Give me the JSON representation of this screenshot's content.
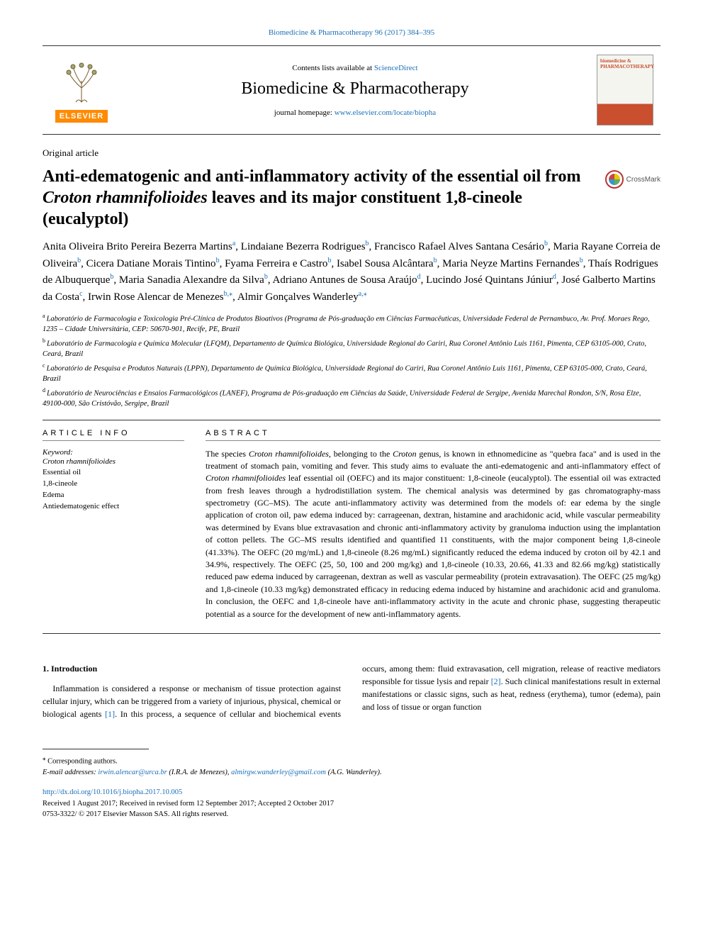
{
  "header": {
    "citation": "Biomedicine & Pharmacotherapy 96 (2017) 384–395",
    "contents_prefix": "Contents lists available at ",
    "contents_link": "ScienceDirect",
    "journal_name": "Biomedicine & Pharmacotherapy",
    "homepage_prefix": "journal homepage: ",
    "homepage_link": "www.elsevier.com/locate/biopha",
    "publisher_word": "ELSEVIER",
    "cover_text": "biomedicine\n& PHARMACOTHERAPY"
  },
  "article": {
    "type": "Original article",
    "title_pre": "Anti-edematogenic and anti-inflammatory activity of the essential oil from ",
    "title_ital": "Croton rhamnifolioides",
    "title_post": " leaves and its major constituent 1,8-cineole (eucalyptol)",
    "crossmark": "CrossMark"
  },
  "authors": {
    "list": [
      {
        "name": "Anita Oliveira Brito Pereira Bezerra Martins",
        "sup": "a"
      },
      {
        "name": "Lindaiane Bezerra Rodrigues",
        "sup": "b"
      },
      {
        "name": "Francisco Rafael Alves Santana Cesário",
        "sup": "b"
      },
      {
        "name": "Maria Rayane Correia de Oliveira",
        "sup": "b"
      },
      {
        "name": "Cicera Datiane Morais Tintino",
        "sup": "b"
      },
      {
        "name": "Fyama Ferreira e Castro",
        "sup": "b"
      },
      {
        "name": "Isabel Sousa Alcântara",
        "sup": "b"
      },
      {
        "name": "Maria Neyze Martins Fernandes",
        "sup": "b"
      },
      {
        "name": "Thaís Rodrigues de Albuquerque",
        "sup": "b"
      },
      {
        "name": "Maria Sanadia Alexandre da Silva",
        "sup": "b"
      },
      {
        "name": "Adriano Antunes de Sousa Araújo",
        "sup": "d"
      },
      {
        "name": "Lucindo José Quintans Júniur",
        "sup": "d"
      },
      {
        "name": "José Galberto Martins da Costa",
        "sup": "c"
      },
      {
        "name": "Irwin Rose Alencar de Menezes",
        "sup": "b,⁎"
      },
      {
        "name": "Almir Gonçalves Wanderley",
        "sup": "a,⁎"
      }
    ]
  },
  "affiliations": {
    "a": "Laboratório de Farmacologia e Toxicologia Pré-Clínica de Produtos Bioativos (Programa de Pós-graduação em Ciências Farmacêuticas, Universidade Federal de Pernambuco, Av. Prof. Moraes Rego, 1235 – Cidade Universitária, CEP: 50670-901, Recife, PE, Brazil",
    "b": "Laboratório de Farmacologia e Química Molecular (LFQM), Departamento de Química Biológica, Universidade Regional do Cariri, Rua Coronel Antônio Luis 1161, Pimenta, CEP 63105-000, Crato, Ceará, Brazil",
    "c": "Laboratório de Pesquisa e Produtos Naturais (LPPN), Departamento de Química Biológica, Universidade Regional do Cariri, Rua Coronel Antônio Luis 1161, Pimenta, CEP 63105-000, Crato, Ceará, Brazil",
    "d": "Laboratório de Neurociências e Ensaios Farmacológicos (LANEF), Programa de Pós-graduação em Ciências da Saúde, Universidade Federal de Sergipe, Avenida Marechal Rondon, S/N, Rosa Elze, 49100-000, São Cristóvão, Sergipe, Brazil"
  },
  "info": {
    "heading": "ARTICLE INFO",
    "kw_label": "Keyword:",
    "keywords": [
      "Croton rhamnifolioides",
      "Essential oil",
      "1,8-cineole",
      "Edema",
      "Antiedematogenic effect"
    ]
  },
  "abstract": {
    "heading": "ABSTRACT",
    "p1a": "The species ",
    "p1i1": "Croton rhamnifolioides",
    "p1b": ", belonging to the ",
    "p1i2": "Croton",
    "p1c": " genus, is known in ethnomedicine as \"quebra faca\" and is used in the treatment of stomach pain, vomiting and fever. This study aims to evaluate the anti-edematogenic and anti-inflammatory effect of ",
    "p1i3": "Croton rhamnifolioides",
    "p1d": " leaf essential oil (OEFC) and its major constituent: 1,8-cineole (eucalyptol). The essential oil was extracted from fresh leaves through a hydrodistillation system. The chemical analysis was determined by gas chromatography-mass spectrometry (GC–MS). The acute anti-inflammatory activity was determined from the models of: ear edema by the single application of croton oil, paw edema induced by: carrageenan, dextran, histamine and arachidonic acid, while vascular permeability was determined by Evans blue extravasation and chronic anti-inflammatory activity by granuloma induction using the implantation of cotton pellets. The GC–MS results identified and quantified 11 constituents, with the major component being 1,8-cineole (41.33%). The OEFC (20 mg/mL) and 1,8-cineole (8.26 mg/mL) significantly reduced the edema induced by croton oil by 42.1 and 34.9%, respectively. The OEFC (25, 50, 100 and 200 mg/kg) and 1,8-cineole (10.33, 20.66, 41.33 and 82.66 mg/kg) statistically reduced paw edema induced by carrageenan, dextran as well as vascular permeability (protein extravasation). The OEFC (25 mg/kg) and 1,8-cineole (10.33 mg/kg) demonstrated efficacy in reducing edema induced by histamine and arachidonic acid and granuloma. In conclusion, the OEFC and 1,8-cineole have anti-inflammatory activity in the acute and chronic phase, suggesting therapeutic potential as a source for the development of new anti-inflammatory agents."
  },
  "intro": {
    "heading": "1. Introduction",
    "col1": "Inflammation is considered a response or mechanism of tissue protection against cellular injury, which can be triggered from a variety of injurious, physical, chemical or biological agents ",
    "ref1": "[1]",
    "col1b": ". In this process,",
    "col2a": "a sequence of cellular and biochemical events occurs, among them: fluid extravasation, cell migration, release of reactive mediators responsible for tissue lysis and repair ",
    "ref2": "[2]",
    "col2b": ". Such clinical manifestations result in external manifestations or classic signs, such as heat, redness (erythema), tumor (edema), pain and loss of tissue or organ function"
  },
  "footer": {
    "corr": "Corresponding authors.",
    "email_label": "E-mail addresses: ",
    "email1": "irwin.alencar@urca.br",
    "email1_name": " (I.R.A. de Menezes), ",
    "email2": "almirgw.wanderley@gmail.com",
    "email2_name": " (A.G. Wanderley).",
    "doi": "http://dx.doi.org/10.1016/j.biopha.2017.10.005",
    "dates": "Received 1 August 2017; Received in revised form 12 September 2017; Accepted 2 October 2017",
    "issn": "0753-3322/ © 2017 Elsevier Masson SAS. All rights reserved."
  },
  "colors": {
    "link": "#1a6fb8",
    "elsevier_orange": "#ff8a00",
    "text": "#000000"
  }
}
